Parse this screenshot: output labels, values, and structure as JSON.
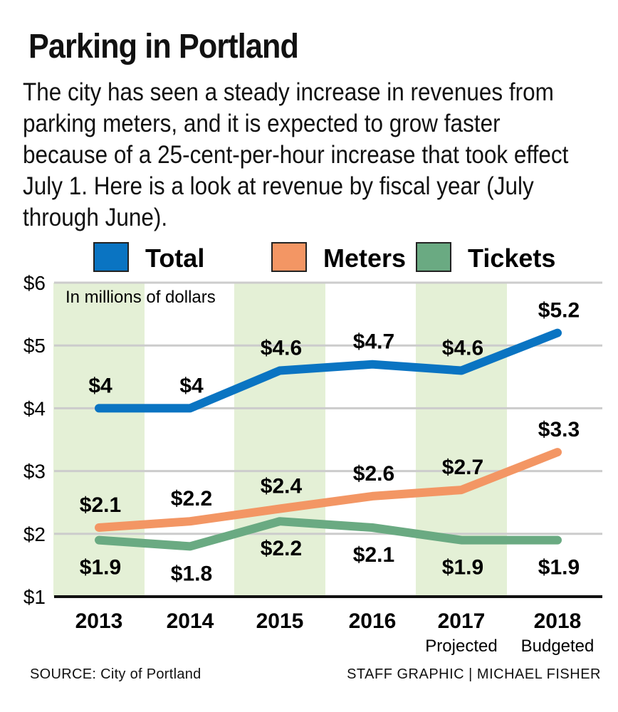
{
  "header": {
    "title": "Parking in Portland",
    "description": "The city has seen a steady increase in revenues from parking meters, and it is expected to grow faster because of a 25-cent-per-hour increase that took effect July 1. Here is a look at revenue by fiscal year (July through June)."
  },
  "footer": {
    "source": "SOURCE: City of Portland",
    "credit": "STAFF GRAPHIC | MICHAEL FISHER"
  },
  "chart_data": {
    "type": "line",
    "title": "Parking in Portland",
    "units_note": "In millions of dollars",
    "xlabel": "",
    "ylabel": "",
    "categories": [
      "2013",
      "2014",
      "2015",
      "2016",
      "2017",
      "2018"
    ],
    "category_sublabels": [
      "",
      "",
      "",
      "",
      "Projected",
      "Budgeted"
    ],
    "ylim": [
      1,
      6
    ],
    "yticks": [
      1,
      2,
      3,
      4,
      5,
      6
    ],
    "ytick_labels": [
      "$1",
      "$2",
      "$3",
      "$4",
      "$5",
      "$6"
    ],
    "grid": true,
    "shaded_categories": [
      "2013",
      "2015",
      "2017"
    ],
    "legend_position": "top",
    "series": [
      {
        "name": "Total",
        "color": "#0a74c2",
        "values": [
          4,
          4,
          4.6,
          4.7,
          4.6,
          5.2
        ],
        "labels": [
          "$4",
          "$4",
          "$4.6",
          "$4.7",
          "$4.6",
          "$5.2"
        ],
        "label_side": "above"
      },
      {
        "name": "Meters",
        "color": "#f39664",
        "values": [
          2.1,
          2.2,
          2.4,
          2.6,
          2.7,
          3.3
        ],
        "labels": [
          "$2.1",
          "$2.2",
          "$2.4",
          "$2.6",
          "$2.7",
          "$3.3"
        ],
        "label_side": "above"
      },
      {
        "name": "Tickets",
        "color": "#6aaa82",
        "values": [
          1.9,
          1.8,
          2.2,
          2.1,
          1.9,
          1.9
        ],
        "labels": [
          "$1.9",
          "$1.8",
          "$2.2",
          "$2.1",
          "$1.9",
          "$1.9"
        ],
        "label_side": "below"
      }
    ],
    "colors": {
      "band": "#e4f0d6",
      "grid": "#cccccc",
      "axis": "#111111"
    }
  }
}
